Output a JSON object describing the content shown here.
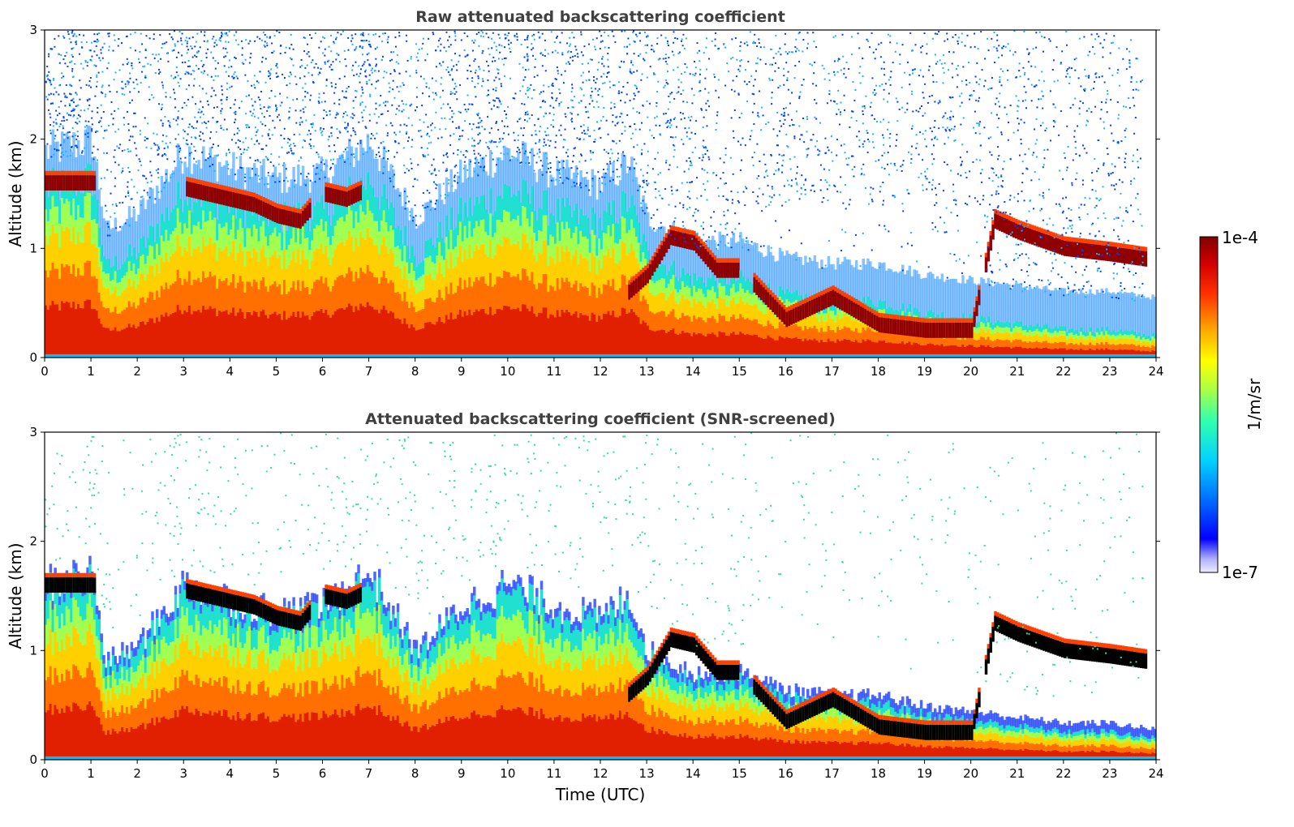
{
  "chart_data": [
    {
      "type": "heatmap",
      "title": "Raw attenuated backscattering coefficient",
      "xlabel": "",
      "ylabel": "Altitude (km)",
      "x_ticks": [
        "0",
        "1",
        "2",
        "3",
        "4",
        "5",
        "6",
        "7",
        "8",
        "9",
        "10",
        "11",
        "12",
        "13",
        "14",
        "15",
        "16",
        "17",
        "18",
        "19",
        "20",
        "21",
        "22",
        "23",
        "24"
      ],
      "y_ticks": [
        "0",
        "1",
        "2",
        "3"
      ],
      "xlim": [
        0,
        24
      ],
      "ylim": [
        0,
        3
      ],
      "screened": false,
      "layers": [
        {
          "name": "boundary layer aerosol (top altitude km)",
          "x": [
            0,
            1,
            1.3,
            2,
            3,
            4,
            5,
            6,
            7,
            8,
            9,
            10,
            11,
            12,
            12.6,
            13,
            14,
            15,
            16,
            17,
            18,
            19,
            20,
            21,
            22,
            23,
            23.8
          ],
          "values": [
            1.5,
            1.6,
            0.8,
            0.95,
            1.5,
            1.35,
            1.25,
            1.3,
            1.6,
            0.9,
            1.3,
            1.5,
            1.3,
            1.2,
            1.4,
            0.9,
            0.7,
            0.7,
            0.55,
            0.5,
            0.5,
            0.4,
            0.35,
            0.3,
            0.25,
            0.25,
            0.2
          ]
        },
        {
          "name": "cloud layer (altitude km)",
          "x": [
            0,
            0.5,
            1,
            3,
            3.5,
            4,
            4.5,
            5,
            5.5,
            6,
            6.5,
            7,
            12.6,
            13,
            13.5,
            14,
            14.5,
            15,
            16,
            17,
            18,
            19,
            20,
            20.5,
            21,
            22,
            23,
            23.8
          ],
          "values": [
            1.6,
            1.6,
            1.6,
            1.55,
            1.5,
            1.45,
            1.4,
            1.3,
            1.25,
            1.5,
            1.45,
            1.55,
            0.6,
            0.75,
            1.1,
            1.05,
            0.8,
            0.8,
            0.35,
            0.55,
            0.3,
            0.25,
            0.25,
            1.25,
            1.15,
            1.0,
            0.95,
            0.9
          ]
        }
      ]
    },
    {
      "type": "heatmap",
      "title": "Attenuated backscattering coefficient (SNR-screened)",
      "xlabel": "Time (UTC)",
      "ylabel": "Altitude (km)",
      "x_ticks": [
        "0",
        "1",
        "2",
        "3",
        "4",
        "5",
        "6",
        "7",
        "8",
        "9",
        "10",
        "11",
        "12",
        "13",
        "14",
        "15",
        "16",
        "17",
        "18",
        "19",
        "20",
        "21",
        "22",
        "23",
        "24"
      ],
      "y_ticks": [
        "0",
        "1",
        "2",
        "3"
      ],
      "xlim": [
        0,
        24
      ],
      "ylim": [
        0,
        3
      ],
      "screened": true
    }
  ],
  "colorbar": {
    "label": "1/m/sr",
    "max_label": "1e-4",
    "min_label": "1e-7",
    "colors": [
      "#e8e8ff",
      "#c8c8ff",
      "#a0a0ff",
      "#0000ff",
      "#0040ff",
      "#0080ff",
      "#00c0ff",
      "#00f0e0",
      "#40ff a0",
      "#a0ff60",
      "#ffff00",
      "#ffc000",
      "#ff8000",
      "#ff4000",
      "#e00000",
      "#a00000",
      "#800000"
    ]
  }
}
